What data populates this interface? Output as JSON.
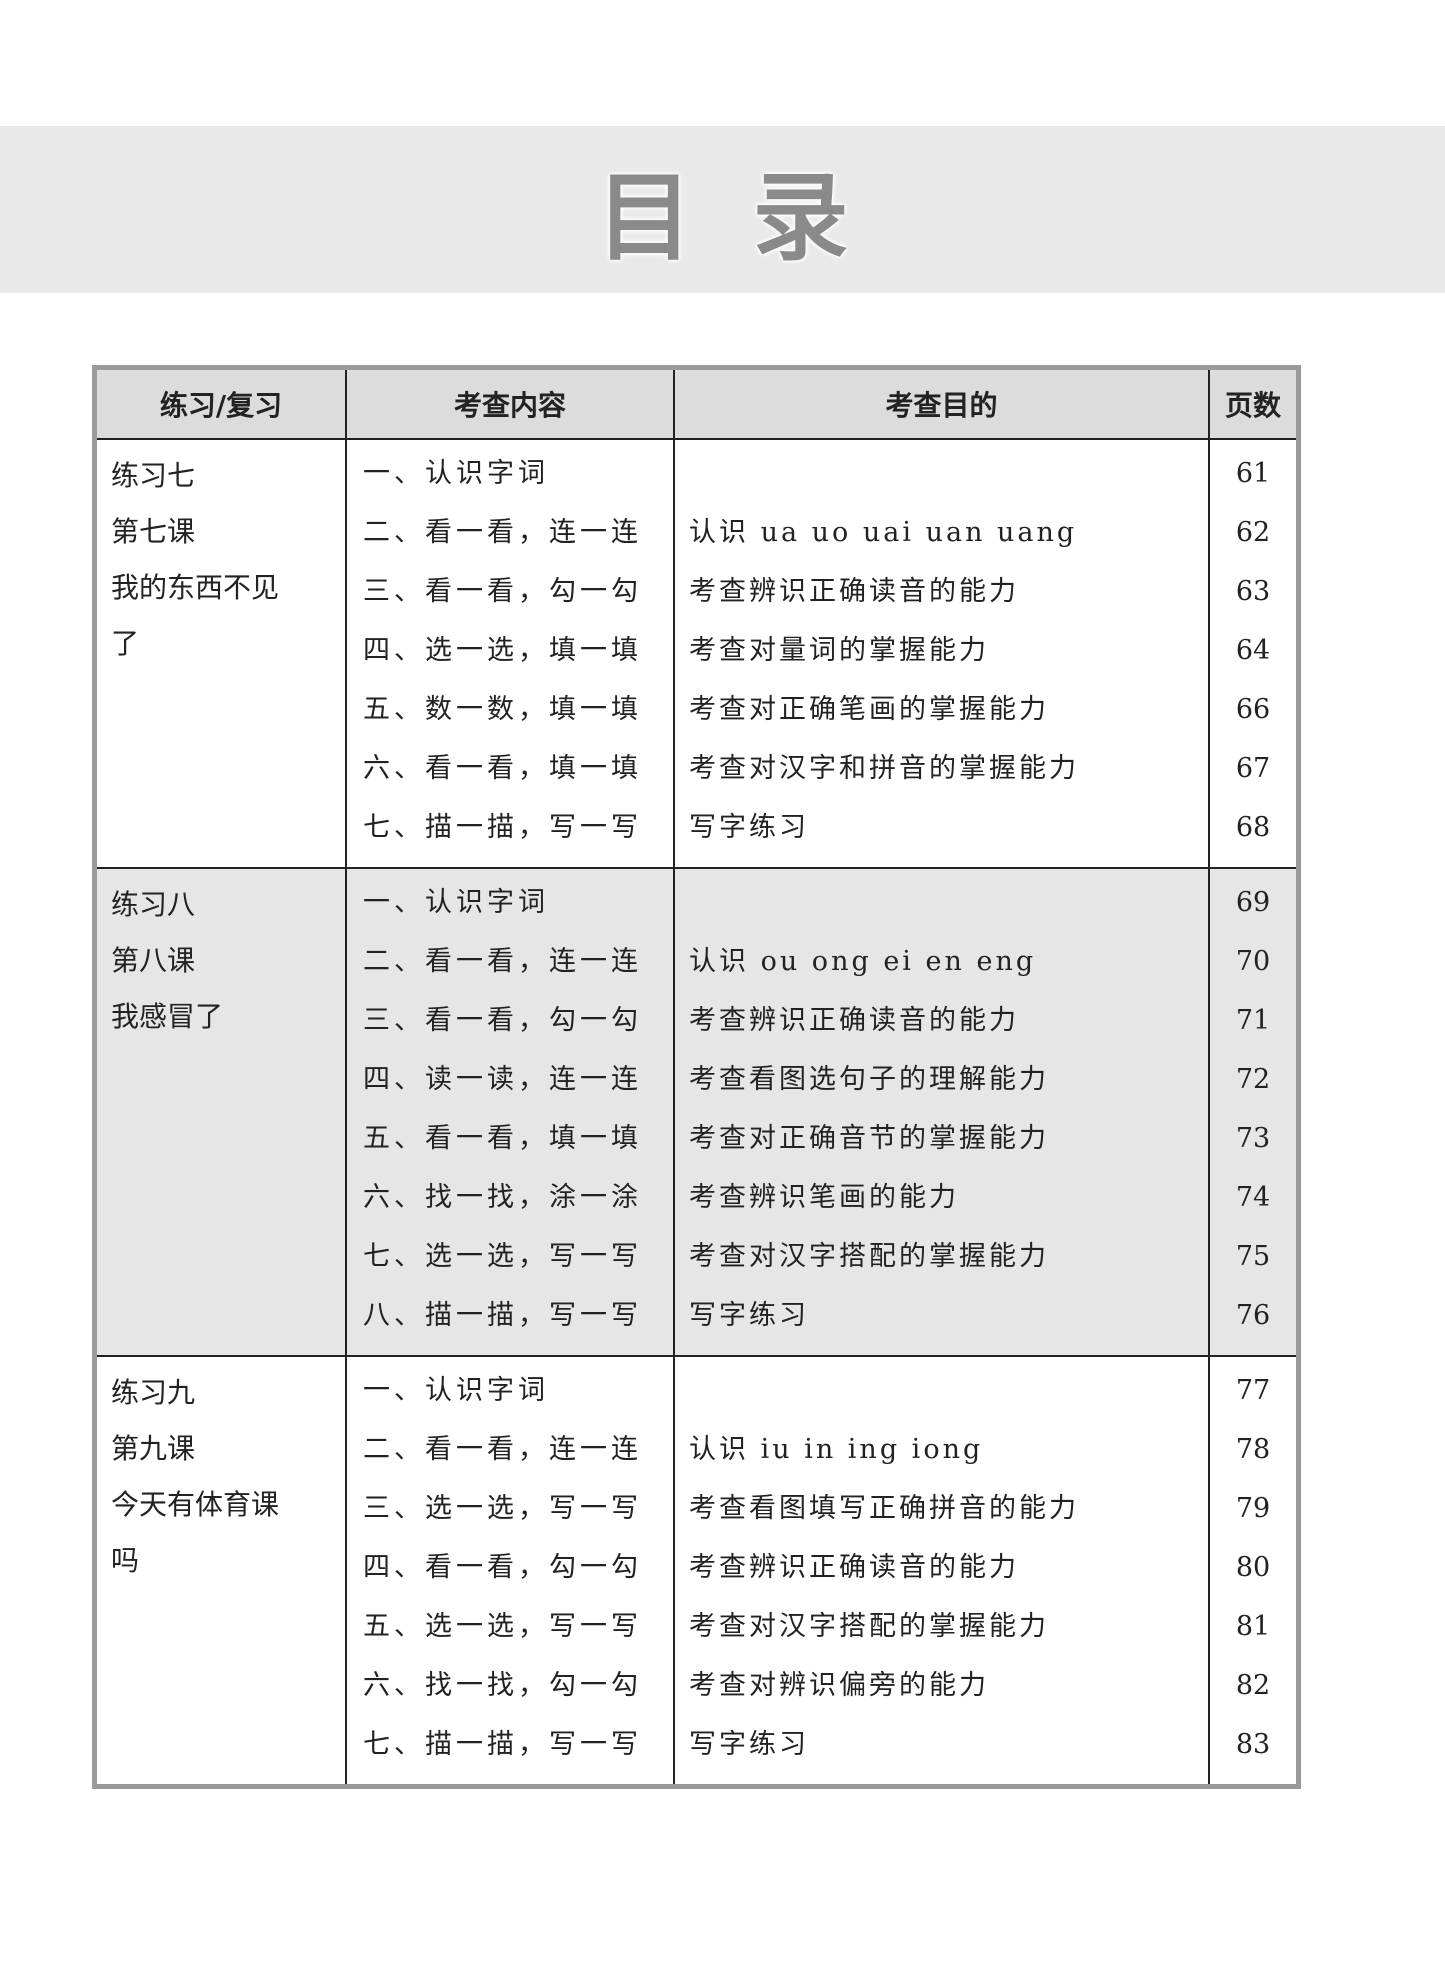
{
  "title": [
    "目",
    "录"
  ],
  "table": {
    "headers": [
      "练习/复习",
      "考查内容",
      "考查目的",
      "页数"
    ],
    "sections": [
      {
        "lesson": [
          "练习七",
          "第七课",
          "我的东西不见",
          "了"
        ],
        "highlight": false,
        "rows": [
          {
            "content": "一、认识字词",
            "purpose": "",
            "page": "61"
          },
          {
            "content": "二、看一看，连一连",
            "purpose": "认识 ua uo uai uan uang",
            "page": "62"
          },
          {
            "content": "三、看一看，勾一勾",
            "purpose": "考查辨识正确读音的能力",
            "page": "63"
          },
          {
            "content": "四、选一选，填一填",
            "purpose": "考查对量词的掌握能力",
            "page": "64"
          },
          {
            "content": "五、数一数，填一填",
            "purpose": "考查对正确笔画的掌握能力",
            "page": "66"
          },
          {
            "content": "六、看一看，填一填",
            "purpose": "考查对汉字和拼音的掌握能力",
            "page": "67"
          },
          {
            "content": "七、描一描，写一写",
            "purpose": "写字练习",
            "page": "68"
          }
        ]
      },
      {
        "lesson": [
          "练习八",
          "第八课",
          "我感冒了"
        ],
        "highlight": true,
        "rows": [
          {
            "content": "一、认识字词",
            "purpose": "",
            "page": "69"
          },
          {
            "content": "二、看一看，连一连",
            "purpose": "认识 ou ong ei en eng",
            "page": "70"
          },
          {
            "content": "三、看一看，勾一勾",
            "purpose": "考查辨识正确读音的能力",
            "page": "71"
          },
          {
            "content": "四、读一读，连一连",
            "purpose": "考查看图选句子的理解能力",
            "page": "72"
          },
          {
            "content": "五、看一看，填一填",
            "purpose": "考查对正确音节的掌握能力",
            "page": "73"
          },
          {
            "content": "六、找一找，涂一涂",
            "purpose": "考查辨识笔画的能力",
            "page": "74"
          },
          {
            "content": "七、选一选，写一写",
            "purpose": "考查对汉字搭配的掌握能力",
            "page": "75"
          },
          {
            "content": "八、描一描，写一写",
            "purpose": "写字练习",
            "page": "76"
          }
        ]
      },
      {
        "lesson": [
          "练习九",
          "第九课",
          "今天有体育课",
          "吗"
        ],
        "highlight": false,
        "rows": [
          {
            "content": "一、认识字词",
            "purpose": "",
            "page": "77"
          },
          {
            "content": "二、看一看，连一连",
            "purpose": "认识 iu in ing iong",
            "page": "78"
          },
          {
            "content": "三、选一选，写一写",
            "purpose": "考查看图填写正确拼音的能力",
            "page": "79"
          },
          {
            "content": "四、看一看，勾一勾",
            "purpose": "考查辨识正确读音的能力",
            "page": "80"
          },
          {
            "content": "五、选一选，写一写",
            "purpose": "考查对汉字搭配的掌握能力",
            "page": "81"
          },
          {
            "content": "六、找一找，勾一勾",
            "purpose": "考查对辨识偏旁的能力",
            "page": "82"
          },
          {
            "content": "七、描一描，写一写",
            "purpose": "写字练习",
            "page": "83"
          }
        ]
      }
    ]
  }
}
